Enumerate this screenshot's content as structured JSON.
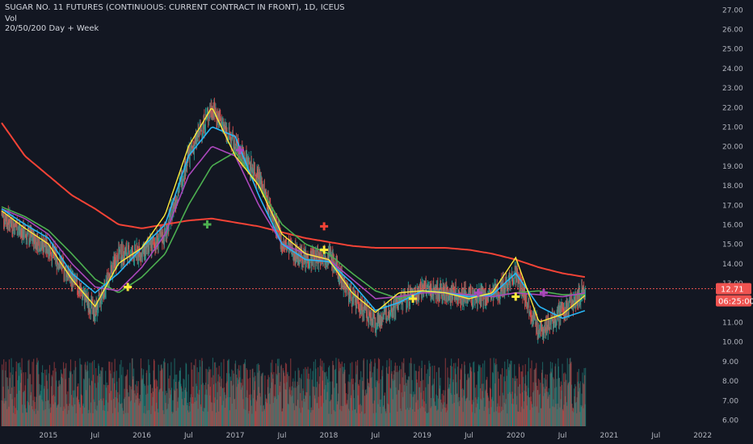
{
  "header": {
    "title": "SUGAR NO. 11 FUTURES (CONTINUOUS: CURRENT CONTRACT IN FRONT), 1D, ICEUS",
    "volume_label": "Vol",
    "indicator_label": "20/50/200 Day + Week"
  },
  "price_axis": {
    "ticks": [
      "27.00",
      "26.00",
      "25.00",
      "24.00",
      "23.00",
      "22.00",
      "21.00",
      "20.00",
      "19.00",
      "18.00",
      "17.00",
      "16.00",
      "15.00",
      "14.00",
      "13.00",
      "12.00",
      "11.00",
      "10.00",
      "9.00",
      "8.00",
      "7.00",
      "6.00"
    ],
    "last_price": "12.71",
    "countdown": "06:25:00"
  },
  "time_axis": {
    "ticks": [
      "2015",
      "Jul",
      "2016",
      "Jul",
      "2017",
      "Jul",
      "2018",
      "Jul",
      "2019",
      "Jul",
      "2020",
      "Jul",
      "2021",
      "Jul",
      "2022"
    ]
  },
  "colors": {
    "background": "#131722",
    "up": "#26a69a",
    "down": "#ef5350",
    "ma20": "#ffeb3b",
    "ma50": "#29b6f6",
    "ma_week": "#ab47bc",
    "ma50_green": "#4caf50",
    "ma200": "#f44336",
    "price_line": "#ef5350"
  },
  "chart_data": {
    "type": "line",
    "x": [
      2014.5,
      2014.75,
      2015.0,
      2015.25,
      2015.5,
      2015.75,
      2016.0,
      2016.25,
      2016.5,
      2016.75,
      2017.0,
      2017.25,
      2017.5,
      2017.75,
      2018.0,
      2018.25,
      2018.5,
      2018.75,
      2019.0,
      2019.25,
      2019.5,
      2019.75,
      2020.0,
      2020.25,
      2020.5,
      2020.75
    ],
    "series": [
      {
        "name": "price",
        "values": [
          16.5,
          15.5,
          14.8,
          13.2,
          11.5,
          14.5,
          14.5,
          15.5,
          19.5,
          22.0,
          20.0,
          18.5,
          15.0,
          14.2,
          14.5,
          12.2,
          11.0,
          12.0,
          12.7,
          12.5,
          12.3,
          12.3,
          13.5,
          10.5,
          11.5,
          12.7
        ]
      },
      {
        "name": "ma20",
        "values": [
          16.7,
          15.8,
          15.0,
          13.2,
          11.8,
          14.0,
          14.8,
          16.5,
          20.0,
          22.0,
          19.5,
          18.0,
          15.5,
          14.5,
          14.2,
          12.5,
          11.5,
          12.5,
          12.6,
          12.5,
          12.2,
          12.5,
          14.3,
          11.0,
          11.4,
          12.4
        ]
      },
      {
        "name": "ma50",
        "values": [
          16.8,
          16.0,
          15.3,
          13.5,
          12.5,
          13.5,
          14.8,
          16.0,
          19.5,
          21.0,
          20.5,
          17.5,
          15.0,
          14.2,
          14.1,
          13.0,
          11.6,
          12.0,
          12.6,
          12.5,
          12.3,
          12.4,
          13.5,
          11.8,
          11.2,
          11.6
        ]
      },
      {
        "name": "ma_week",
        "values": [
          16.8,
          16.3,
          15.5,
          14.0,
          12.8,
          12.6,
          13.8,
          15.5,
          18.5,
          20.0,
          19.5,
          17.0,
          15.0,
          14.5,
          14.2,
          13.2,
          12.2,
          12.3,
          12.5,
          12.5,
          12.4,
          12.3,
          12.5,
          12.4,
          12.3,
          12.5
        ]
      },
      {
        "name": "ma50_green",
        "values": [
          16.9,
          16.4,
          15.7,
          14.5,
          13.2,
          12.5,
          13.3,
          14.5,
          17.0,
          19.0,
          19.7,
          18.0,
          16.0,
          15.0,
          14.5,
          13.5,
          12.6,
          12.2,
          12.5,
          12.5,
          12.4,
          12.3,
          12.5,
          12.6,
          12.4,
          12.4
        ]
      },
      {
        "name": "ma200",
        "values": [
          21.2,
          19.5,
          18.5,
          17.5,
          16.8,
          16.0,
          15.8,
          16.0,
          16.2,
          16.3,
          16.1,
          15.9,
          15.6,
          15.3,
          15.1,
          14.9,
          14.8,
          14.8,
          14.8,
          14.8,
          14.7,
          14.5,
          14.2,
          13.8,
          13.5,
          13.3
        ]
      }
    ],
    "markers": [
      {
        "x": 2015.85,
        "y": 12.8,
        "color": "#ffeb3b"
      },
      {
        "x": 2016.7,
        "y": 16.0,
        "color": "#4caf50"
      },
      {
        "x": 2017.05,
        "y": 19.8,
        "color": "#ab47bc"
      },
      {
        "x": 2017.95,
        "y": 15.9,
        "color": "#f44336"
      },
      {
        "x": 2017.95,
        "y": 14.7,
        "color": "#ffeb3b"
      },
      {
        "x": 2018.9,
        "y": 12.2,
        "color": "#ffeb3b"
      },
      {
        "x": 2019.6,
        "y": 12.5,
        "color": "#ab47bc"
      },
      {
        "x": 2020.0,
        "y": 12.3,
        "color": "#ffeb3b"
      },
      {
        "x": 2020.3,
        "y": 12.5,
        "color": "#ab47bc"
      }
    ],
    "ylim": [
      6,
      27
    ],
    "xlim": [
      2014.5,
      2022.15
    ],
    "grid": false
  }
}
